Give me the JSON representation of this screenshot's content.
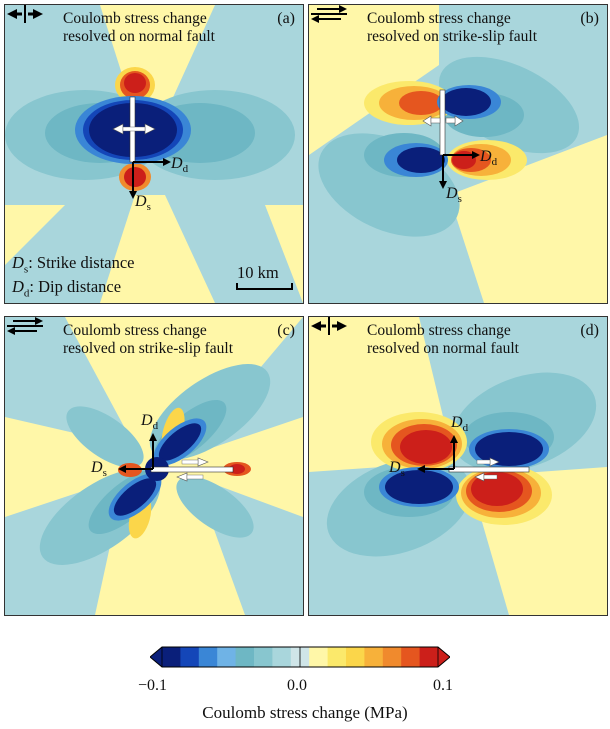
{
  "panels": [
    {
      "id": "a",
      "title_line1": "Coulomb stress change",
      "title_line2": "resolved on normal fault",
      "letter": "(a)",
      "fault_type": "normal",
      "axis_labels": {
        "dip": "D",
        "dip_sub": "d",
        "strike": "D",
        "strike_sub": "s"
      }
    },
    {
      "id": "b",
      "title_line1": "Coulomb stress change",
      "title_line2": "resolved on strike-slip fault",
      "letter": "(b)",
      "fault_type": "strike-slip",
      "axis_labels": {
        "dip": "D",
        "dip_sub": "d",
        "strike": "D",
        "strike_sub": "s"
      }
    },
    {
      "id": "c",
      "title_line1": "Coulomb stress change",
      "title_line2": "resolved on strike-slip fault",
      "letter": "(c)",
      "fault_type": "strike-slip",
      "axis_labels": {
        "dip": "D",
        "dip_sub": "d",
        "strike": "D",
        "strike_sub": "s"
      }
    },
    {
      "id": "d",
      "title_line1": "Coulomb stress change",
      "title_line2": "resolved on normal fault",
      "letter": "(d)",
      "fault_type": "normal",
      "axis_labels": {
        "dip": "D",
        "dip_sub": "d",
        "strike": "D",
        "strike_sub": "s"
      }
    }
  ],
  "legend": {
    "strike_symbol": "D",
    "strike_sub": "s",
    "strike_text": ": Strike distance",
    "dip_symbol": "D",
    "dip_sub": "d",
    "dip_text": ": Dip distance",
    "scale_bar": "10 km"
  },
  "colorbar": {
    "title": "Coulomb stress change (MPa)",
    "tick_min": "−0.1",
    "tick_mid": "0.0",
    "tick_max": "0.1",
    "colors": [
      "#0a1f7a",
      "#1446b8",
      "#3a86d6",
      "#6fb3e6",
      "#6eb7c4",
      "#88c6cf",
      "#a9d6dc",
      "#cfe5e8",
      "#fff7a8",
      "#fbe96b",
      "#fbd64a",
      "#f7b13a",
      "#f08a2d",
      "#e5561f",
      "#cc1f1a"
    ]
  }
}
